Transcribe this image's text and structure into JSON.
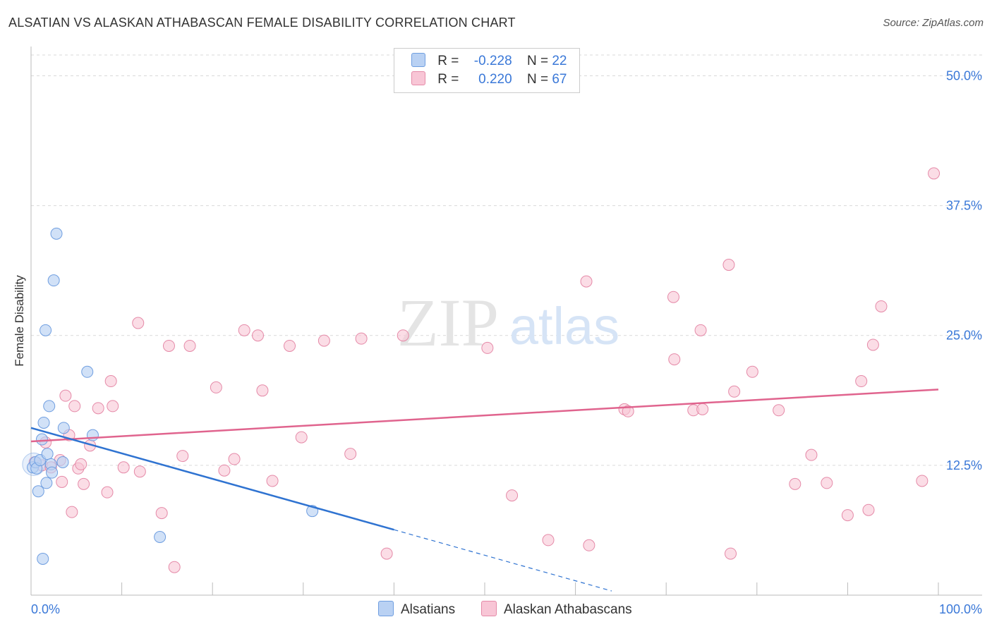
{
  "title": "ALSATIAN VS ALASKAN ATHABASCAN FEMALE DISABILITY CORRELATION CHART",
  "source": "Source: ZipAtlas.com",
  "watermark": {
    "zip": "ZIP",
    "atlas": "atlas"
  },
  "legend": {
    "rows": [
      {
        "r_label": "R =",
        "r_value": "-0.228",
        "n_label": "N =",
        "n_value": "22"
      },
      {
        "r_label": "R =",
        "r_value": "0.220",
        "n_label": "N =",
        "n_value": "67"
      }
    ]
  },
  "bottom_legend": {
    "series1": "Alsatians",
    "series2": "Alaskan Athabascans"
  },
  "colors": {
    "blue_fill": "#b9d1f3",
    "blue_stroke": "#6f9ee0",
    "blue_line": "#2f73d1",
    "pink_fill": "#f8c6d6",
    "pink_stroke": "#e58aa8",
    "pink_line": "#e0648e",
    "tick_label": "#3a78d8",
    "grid": "#d9d9d9"
  },
  "chart_data": {
    "type": "scatter",
    "title": "ALSATIAN VS ALASKAN ATHABASCAN FEMALE DISABILITY CORRELATION CHART",
    "xlabel": "",
    "ylabel": "Female Disability",
    "xlim": [
      0,
      100
    ],
    "ylim": [
      0,
      52
    ],
    "x_tick_labels": [
      "0.0%",
      "100.0%"
    ],
    "y_ticks": [
      12.5,
      25.0,
      37.5,
      50.0
    ],
    "y_tick_labels": [
      "12.5%",
      "25.0%",
      "37.5%",
      "50.0%"
    ],
    "series": [
      {
        "name": "Alsatians",
        "points": [
          [
            0.2,
            12.3
          ],
          [
            0.5,
            12.8
          ],
          [
            0.6,
            12.2
          ],
          [
            0.8,
            10.0
          ],
          [
            1.0,
            13.0
          ],
          [
            1.2,
            15.0
          ],
          [
            1.3,
            3.5
          ],
          [
            1.4,
            16.6
          ],
          [
            1.6,
            25.5
          ],
          [
            1.7,
            10.8
          ],
          [
            1.8,
            13.6
          ],
          [
            2.0,
            18.2
          ],
          [
            2.2,
            12.6
          ],
          [
            2.3,
            11.8
          ],
          [
            2.5,
            30.3
          ],
          [
            2.8,
            34.8
          ],
          [
            3.5,
            12.8
          ],
          [
            3.6,
            16.1
          ],
          [
            6.2,
            21.5
          ],
          [
            6.8,
            15.4
          ],
          [
            14.2,
            5.6
          ],
          [
            31.0,
            8.1
          ]
        ],
        "trend": {
          "x0": 0,
          "y0": 16.1,
          "x1": 40,
          "y1": 6.3,
          "dash_x1": 64,
          "dash_y1": 0.4
        }
      },
      {
        "name": "Alaskan Athabascans",
        "points": [
          [
            0.4,
            12.8
          ],
          [
            1.2,
            12.5
          ],
          [
            1.6,
            14.7
          ],
          [
            2.2,
            12.3
          ],
          [
            3.2,
            13.0
          ],
          [
            3.4,
            10.9
          ],
          [
            3.8,
            19.2
          ],
          [
            4.2,
            15.4
          ],
          [
            4.5,
            8.0
          ],
          [
            4.8,
            18.2
          ],
          [
            5.2,
            12.2
          ],
          [
            5.5,
            12.6
          ],
          [
            5.8,
            10.7
          ],
          [
            6.5,
            14.4
          ],
          [
            7.4,
            18.0
          ],
          [
            8.4,
            9.9
          ],
          [
            8.8,
            20.6
          ],
          [
            9.0,
            18.2
          ],
          [
            10.2,
            12.3
          ],
          [
            11.8,
            26.2
          ],
          [
            12.0,
            11.9
          ],
          [
            14.4,
            7.9
          ],
          [
            15.2,
            24.0
          ],
          [
            15.8,
            2.7
          ],
          [
            16.7,
            13.4
          ],
          [
            17.5,
            24.0
          ],
          [
            20.4,
            20.0
          ],
          [
            21.3,
            12.0
          ],
          [
            22.4,
            13.1
          ],
          [
            23.5,
            25.5
          ],
          [
            25.0,
            25.0
          ],
          [
            25.5,
            19.7
          ],
          [
            26.6,
            11.0
          ],
          [
            28.5,
            24.0
          ],
          [
            29.8,
            15.2
          ],
          [
            32.3,
            24.5
          ],
          [
            35.2,
            13.6
          ],
          [
            36.4,
            24.7
          ],
          [
            39.2,
            4.0
          ],
          [
            41.0,
            25.0
          ],
          [
            50.3,
            23.8
          ],
          [
            53.0,
            9.6
          ],
          [
            57.0,
            5.3
          ],
          [
            61.2,
            30.2
          ],
          [
            61.5,
            4.8
          ],
          [
            65.4,
            17.9
          ],
          [
            65.8,
            17.7
          ],
          [
            70.8,
            28.7
          ],
          [
            70.9,
            22.7
          ],
          [
            73.0,
            17.8
          ],
          [
            73.8,
            25.5
          ],
          [
            74.0,
            17.9
          ],
          [
            76.9,
            31.8
          ],
          [
            77.1,
            4.0
          ],
          [
            77.5,
            19.6
          ],
          [
            79.5,
            21.5
          ],
          [
            82.4,
            17.8
          ],
          [
            84.2,
            10.7
          ],
          [
            86.0,
            13.5
          ],
          [
            87.7,
            10.8
          ],
          [
            90.0,
            7.7
          ],
          [
            91.5,
            20.6
          ],
          [
            92.3,
            8.2
          ],
          [
            92.8,
            24.1
          ],
          [
            93.7,
            27.8
          ],
          [
            98.2,
            11.0
          ],
          [
            99.5,
            40.6
          ]
        ],
        "trend": {
          "x0": 0,
          "y0": 14.8,
          "x1": 100,
          "y1": 19.8
        }
      }
    ]
  }
}
